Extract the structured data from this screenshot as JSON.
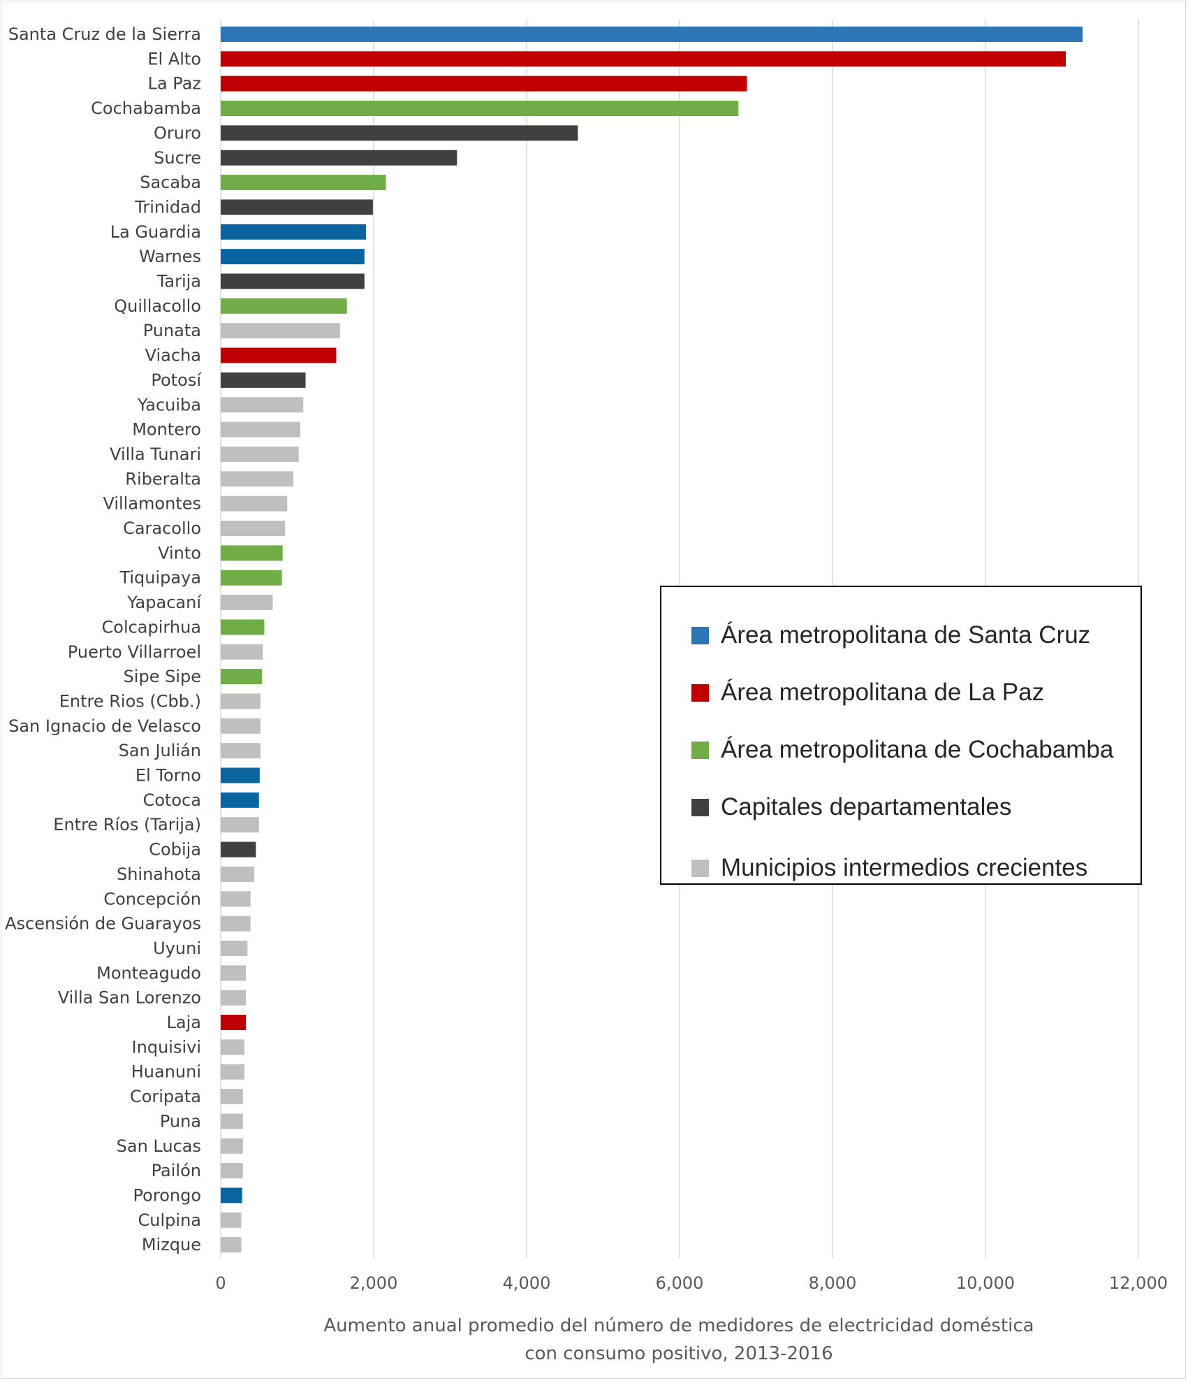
{
  "chart_data": {
    "type": "bar",
    "orientation": "horizontal",
    "xlabel_lines": [
      "Aumento  anual promedio  del número  de medidores de electricidad doméstica",
      "con consumo  positivo, 2013-2016"
    ],
    "xlim": [
      0,
      12000
    ],
    "xticks": [
      0,
      2000,
      4000,
      6000,
      8000,
      10000,
      12000
    ],
    "xtick_labels": [
      "0",
      "2,000",
      "4,000",
      "6,000",
      "8,000",
      "10,000",
      "12,000"
    ],
    "grid": "vertical major gridlines",
    "legend_position": "right, middle",
    "groups": [
      {
        "key": "scz",
        "name": "Área metropolitana de Santa Cruz",
        "color": "#2e75b6"
      },
      {
        "key": "lpz",
        "name": "Área metropolitana de La Paz",
        "color": "#c00000"
      },
      {
        "key": "cbba",
        "name": "Área metropolitana de Cochabamba",
        "color": "#70ad47"
      },
      {
        "key": "cap",
        "name": "Capitales departamentales",
        "color": "#404040"
      },
      {
        "key": "mun",
        "name": "Municipios intermedios crecientes",
        "color": "#bfbfbf"
      }
    ],
    "bars": [
      {
        "category": "Santa Cruz de la Sierra",
        "value": 11270,
        "group": "scz",
        "color": "#2e75b6"
      },
      {
        "category": "El Alto",
        "value": 11050,
        "group": "lpz",
        "color": "#c00000"
      },
      {
        "category": "La Paz",
        "value": 6880,
        "group": "lpz",
        "color": "#c00000"
      },
      {
        "category": "Cochabamba",
        "value": 6770,
        "group": "cbba",
        "color": "#70ad47"
      },
      {
        "category": "Oruro",
        "value": 4670,
        "group": "cap",
        "color": "#404040"
      },
      {
        "category": "Sucre",
        "value": 3090,
        "group": "cap",
        "color": "#404040"
      },
      {
        "category": "Sacaba",
        "value": 2160,
        "group": "cbba",
        "color": "#70ad47"
      },
      {
        "category": "Trinidad",
        "value": 1990,
        "group": "cap",
        "color": "#404040"
      },
      {
        "category": "La Guardia",
        "value": 1900,
        "group": "scz",
        "color": "#0a64a0"
      },
      {
        "category": "Warnes",
        "value": 1880,
        "group": "scz",
        "color": "#0a64a0"
      },
      {
        "category": "Tarija",
        "value": 1880,
        "group": "cap",
        "color": "#404040"
      },
      {
        "category": "Quillacollo",
        "value": 1650,
        "group": "cbba",
        "color": "#70ad47"
      },
      {
        "category": "Punata",
        "value": 1560,
        "group": "mun",
        "color": "#bfbfbf"
      },
      {
        "category": "Viacha",
        "value": 1510,
        "group": "lpz",
        "color": "#c00000"
      },
      {
        "category": "Potosí",
        "value": 1110,
        "group": "cap",
        "color": "#404040"
      },
      {
        "category": "Yacuiba",
        "value": 1080,
        "group": "mun",
        "color": "#bfbfbf"
      },
      {
        "category": "Montero",
        "value": 1040,
        "group": "mun",
        "color": "#bfbfbf"
      },
      {
        "category": "Villa Tunari",
        "value": 1020,
        "group": "mun",
        "color": "#bfbfbf"
      },
      {
        "category": "Riberalta",
        "value": 950,
        "group": "mun",
        "color": "#bfbfbf"
      },
      {
        "category": "Villamontes",
        "value": 870,
        "group": "mun",
        "color": "#bfbfbf"
      },
      {
        "category": "Caracollo",
        "value": 840,
        "group": "mun",
        "color": "#bfbfbf"
      },
      {
        "category": "Vinto",
        "value": 810,
        "group": "cbba",
        "color": "#70ad47"
      },
      {
        "category": "Tiquipaya",
        "value": 800,
        "group": "cbba",
        "color": "#70ad47"
      },
      {
        "category": "Yapacaní",
        "value": 680,
        "group": "mun",
        "color": "#bfbfbf"
      },
      {
        "category": "Colcapirhua",
        "value": 570,
        "group": "cbba",
        "color": "#70ad47"
      },
      {
        "category": "Puerto Villarroel",
        "value": 550,
        "group": "mun",
        "color": "#bfbfbf"
      },
      {
        "category": "Sipe Sipe",
        "value": 540,
        "group": "cbba",
        "color": "#70ad47"
      },
      {
        "category": "Entre Rios (Cbb.)",
        "value": 520,
        "group": "mun",
        "color": "#bfbfbf"
      },
      {
        "category": "San Ignacio de Velasco",
        "value": 520,
        "group": "mun",
        "color": "#bfbfbf"
      },
      {
        "category": "San Julián",
        "value": 520,
        "group": "mun",
        "color": "#bfbfbf"
      },
      {
        "category": "El Torno",
        "value": 510,
        "group": "scz",
        "color": "#0a64a0"
      },
      {
        "category": "Cotoca",
        "value": 500,
        "group": "scz",
        "color": "#0a64a0"
      },
      {
        "category": "Entre Ríos (Tarija)",
        "value": 500,
        "group": "mun",
        "color": "#bfbfbf"
      },
      {
        "category": "Cobija",
        "value": 460,
        "group": "cap",
        "color": "#404040"
      },
      {
        "category": "Shinahota",
        "value": 440,
        "group": "mun",
        "color": "#bfbfbf"
      },
      {
        "category": "Concepción",
        "value": 390,
        "group": "mun",
        "color": "#bfbfbf"
      },
      {
        "category": "Ascensión de Guarayos",
        "value": 390,
        "group": "mun",
        "color": "#bfbfbf"
      },
      {
        "category": "Uyuni",
        "value": 350,
        "group": "mun",
        "color": "#bfbfbf"
      },
      {
        "category": "Monteagudo",
        "value": 330,
        "group": "mun",
        "color": "#bfbfbf"
      },
      {
        "category": "Villa San Lorenzo",
        "value": 330,
        "group": "mun",
        "color": "#bfbfbf"
      },
      {
        "category": "Laja",
        "value": 330,
        "group": "lpz",
        "color": "#c00000"
      },
      {
        "category": "Inquisivi",
        "value": 310,
        "group": "mun",
        "color": "#bfbfbf"
      },
      {
        "category": "Huanuni",
        "value": 310,
        "group": "mun",
        "color": "#bfbfbf"
      },
      {
        "category": "Coripata",
        "value": 290,
        "group": "mun",
        "color": "#bfbfbf"
      },
      {
        "category": "Puna",
        "value": 290,
        "group": "mun",
        "color": "#bfbfbf"
      },
      {
        "category": "San Lucas",
        "value": 290,
        "group": "mun",
        "color": "#bfbfbf"
      },
      {
        "category": "Pailón",
        "value": 290,
        "group": "mun",
        "color": "#bfbfbf"
      },
      {
        "category": "Porongo",
        "value": 280,
        "group": "scz",
        "color": "#0a64a0"
      },
      {
        "category": "Culpina",
        "value": 270,
        "group": "mun",
        "color": "#bfbfbf"
      },
      {
        "category": "Mizque",
        "value": 270,
        "group": "mun",
        "color": "#bfbfbf"
      }
    ]
  }
}
